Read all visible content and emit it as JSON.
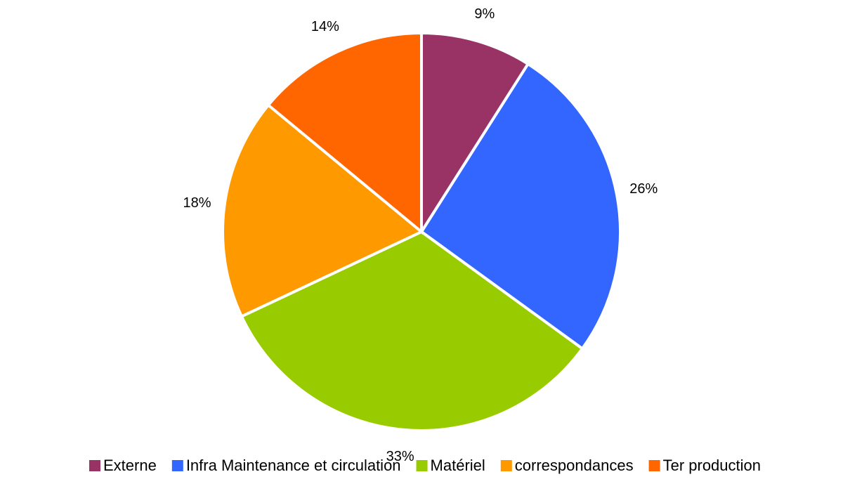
{
  "chart_data": {
    "type": "pie",
    "categories": [
      "Externe",
      "Infra Maintenance et circulation",
      "Matériel",
      "correspondances",
      "Ter production"
    ],
    "values": [
      9,
      26,
      33,
      18,
      14
    ],
    "value_labels": [
      "9%",
      "26%",
      "33%",
      "18%",
      "14%"
    ],
    "colors": [
      "#993366",
      "#3366ff",
      "#99cc00",
      "#ff9900",
      "#ff6600"
    ],
    "legend": "bottom"
  }
}
